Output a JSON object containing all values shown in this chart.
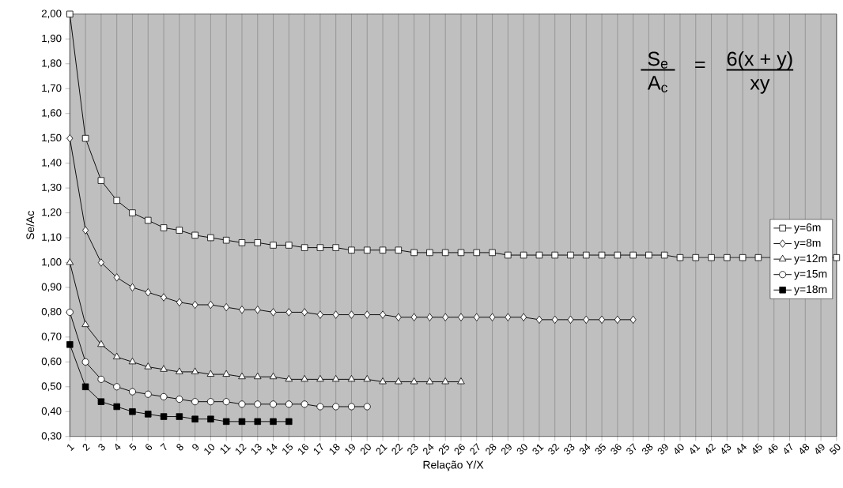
{
  "chart_data": {
    "type": "line",
    "xlabel": "Relação Y/X",
    "ylabel": "Se/Ac",
    "categories": [
      "1",
      "2",
      "3",
      "4",
      "5",
      "6",
      "7",
      "8",
      "9",
      "10",
      "11",
      "12",
      "13",
      "14",
      "15",
      "16",
      "17",
      "18",
      "19",
      "20",
      "21",
      "22",
      "23",
      "24",
      "25",
      "26",
      "27",
      "28",
      "29",
      "30",
      "31",
      "32",
      "33",
      "34",
      "35",
      "36",
      "37",
      "38",
      "39",
      "40",
      "41",
      "42",
      "43",
      "44",
      "45",
      "46",
      "47",
      "48",
      "49",
      "50"
    ],
    "series": [
      {
        "name": "y=6m",
        "color": "#ffffff",
        "marker": "square",
        "values": [
          2.0,
          1.5,
          1.33,
          1.25,
          1.2,
          1.17,
          1.14,
          1.13,
          1.11,
          1.1,
          1.09,
          1.08,
          1.08,
          1.07,
          1.07,
          1.06,
          1.06,
          1.06,
          1.05,
          1.05,
          1.05,
          1.05,
          1.04,
          1.04,
          1.04,
          1.04,
          1.04,
          1.04,
          1.03,
          1.03,
          1.03,
          1.03,
          1.03,
          1.03,
          1.03,
          1.03,
          1.03,
          1.03,
          1.03,
          1.02,
          1.02,
          1.02,
          1.02,
          1.02,
          1.02,
          1.02,
          1.02,
          1.02,
          1.02,
          1.02
        ]
      },
      {
        "name": "y=8m",
        "color": "#ffffff",
        "marker": "diamond",
        "values": [
          1.5,
          1.13,
          1.0,
          0.94,
          0.9,
          0.88,
          0.86,
          0.84,
          0.83,
          0.83,
          0.82,
          0.81,
          0.81,
          0.8,
          0.8,
          0.8,
          0.79,
          0.79,
          0.79,
          0.79,
          0.79,
          0.78,
          0.78,
          0.78,
          0.78,
          0.78,
          0.78,
          0.78,
          0.78,
          0.78,
          0.77,
          0.77,
          0.77,
          0.77,
          0.77,
          0.77,
          0.77,
          null,
          null,
          null,
          null,
          null,
          null,
          null,
          null,
          null,
          null,
          null,
          null,
          null
        ]
      },
      {
        "name": "y=12m",
        "color": "#ffffff",
        "marker": "triangle",
        "values": [
          1.0,
          0.75,
          0.67,
          0.62,
          0.6,
          0.58,
          0.57,
          0.56,
          0.56,
          0.55,
          0.55,
          0.54,
          0.54,
          0.54,
          0.53,
          0.53,
          0.53,
          0.53,
          0.53,
          0.53,
          0.52,
          0.52,
          0.52,
          0.52,
          0.52,
          0.52,
          null,
          null,
          null,
          null,
          null,
          null,
          null,
          null,
          null,
          null,
          null,
          null,
          null,
          null,
          null,
          null,
          null,
          null,
          null,
          null,
          null,
          null,
          null,
          null
        ]
      },
      {
        "name": "y=15m",
        "color": "#ffffff",
        "marker": "circle",
        "values": [
          0.8,
          0.6,
          0.53,
          0.5,
          0.48,
          0.47,
          0.46,
          0.45,
          0.44,
          0.44,
          0.44,
          0.43,
          0.43,
          0.43,
          0.43,
          0.43,
          0.42,
          0.42,
          0.42,
          0.42,
          null,
          null,
          null,
          null,
          null,
          null,
          null,
          null,
          null,
          null,
          null,
          null,
          null,
          null,
          null,
          null,
          null,
          null,
          null,
          null,
          null,
          null,
          null,
          null,
          null,
          null,
          null,
          null,
          null,
          null
        ]
      },
      {
        "name": "y=18m",
        "color": "#000000",
        "marker": "square",
        "values": [
          0.67,
          0.5,
          0.44,
          0.42,
          0.4,
          0.39,
          0.38,
          0.38,
          0.37,
          0.37,
          0.36,
          0.36,
          0.36,
          0.36,
          0.36,
          null,
          null,
          null,
          null,
          null,
          null,
          null,
          null,
          null,
          null,
          null,
          null,
          null,
          null,
          null,
          null,
          null,
          null,
          null,
          null,
          null,
          null,
          null,
          null,
          null,
          null,
          null,
          null,
          null,
          null,
          null,
          null,
          null,
          null,
          null
        ]
      }
    ],
    "ylim": [
      0.3,
      2.0
    ],
    "yticks": [
      {
        "value": 0.3,
        "label": "0,30"
      },
      {
        "value": 0.4,
        "label": "0,40"
      },
      {
        "value": 0.5,
        "label": "0,50"
      },
      {
        "value": 0.6,
        "label": "0,60"
      },
      {
        "value": 0.7,
        "label": "0,70"
      },
      {
        "value": 0.8,
        "label": "0,80"
      },
      {
        "value": 0.9,
        "label": "0,90"
      },
      {
        "value": 1.0,
        "label": "1,00"
      },
      {
        "value": 1.1,
        "label": "1,10"
      },
      {
        "value": 1.2,
        "label": "1,20"
      },
      {
        "value": 1.3,
        "label": "1,30"
      },
      {
        "value": 1.4,
        "label": "1,40"
      },
      {
        "value": 1.5,
        "label": "1,50"
      },
      {
        "value": 1.6,
        "label": "1,60"
      },
      {
        "value": 1.7,
        "label": "1,70"
      },
      {
        "value": 1.8,
        "label": "1,80"
      },
      {
        "value": 1.9,
        "label": "1,90"
      },
      {
        "value": 2.0,
        "label": "2,00"
      }
    ],
    "grid": "x",
    "legend": "right",
    "line_style": "solid",
    "annotations": [
      "S$_{e}$",
      "A$_{c}$",
      "=",
      "6(x + y)",
      "xy"
    ]
  }
}
